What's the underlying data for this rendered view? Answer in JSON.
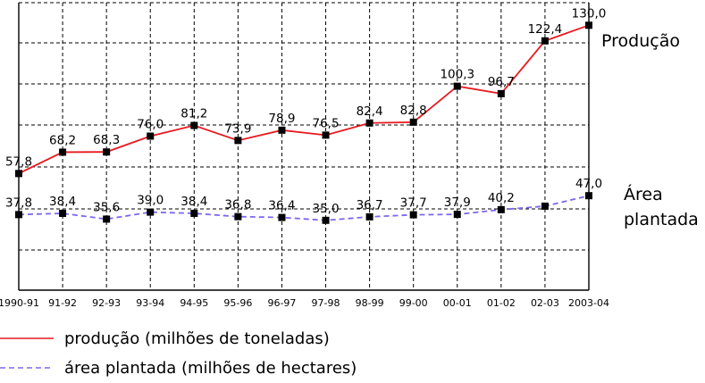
{
  "chart_data": {
    "type": "line",
    "categories": [
      "1990-91",
      "91-92",
      "92-93",
      "93-94",
      "94-95",
      "95-96",
      "96-97",
      "97-98",
      "98-99",
      "99-00",
      "00-01",
      "01-02",
      "02-03",
      "2003-04"
    ],
    "series": [
      {
        "name": "produção (milhões de toneladas)",
        "side_label": "Produção",
        "color": "#e8191f",
        "style": "solid",
        "values": [
          57.8,
          68.2,
          68.3,
          76.0,
          81.2,
          73.9,
          78.9,
          76.5,
          82.4,
          82.8,
          100.3,
          96.7,
          122.4,
          130.0
        ],
        "labels": [
          "57,8",
          "68,2",
          "68,3",
          "76,0",
          "81,2",
          "73,9",
          "78,9",
          "76,5",
          "82,4",
          "82,8",
          "100,3",
          "96,7",
          "122,4",
          "130,0"
        ]
      },
      {
        "name": "área plantada (milhões de hectares)",
        "side_label_lines": [
          "Área",
          "plantada"
        ],
        "color": "#7b68ee",
        "style": "dashed",
        "values": [
          37.8,
          38.4,
          35.6,
          39.0,
          38.4,
          36.8,
          36.4,
          35.0,
          36.7,
          37.7,
          37.9,
          40.2,
          41.9,
          47.0
        ],
        "labels": [
          "37,8",
          "38,4",
          "35,6",
          "39,0",
          "38,4",
          "36,8",
          "36,4",
          "35,0",
          "36,7",
          "37,7",
          "37,9",
          "40,2",
          "",
          "47,0"
        ]
      }
    ],
    "ylim": [
      0,
      140
    ],
    "grid": true,
    "legend_position": "bottom-left",
    "marker": "square"
  }
}
